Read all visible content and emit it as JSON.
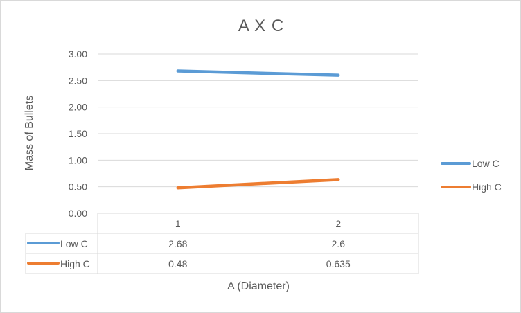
{
  "chart_data": {
    "type": "line",
    "title": "A X C",
    "xlabel": "A (Diameter)",
    "ylabel": "Mass of Bullets",
    "categories": [
      "1",
      "2"
    ],
    "ylim": [
      0,
      3
    ],
    "yticks": [
      "0.00",
      "0.50",
      "1.00",
      "1.50",
      "2.00",
      "2.50",
      "3.00"
    ],
    "grid": true,
    "legend": "right",
    "data_table": true,
    "series": [
      {
        "name": "Low C",
        "values": [
          2.68,
          2.6
        ],
        "labels": [
          "2.68",
          "2.6"
        ],
        "color": "#5b9bd5"
      },
      {
        "name": "High C",
        "values": [
          0.48,
          0.635
        ],
        "labels": [
          "0.48",
          "0.635"
        ],
        "color": "#ed7d31"
      }
    ]
  }
}
